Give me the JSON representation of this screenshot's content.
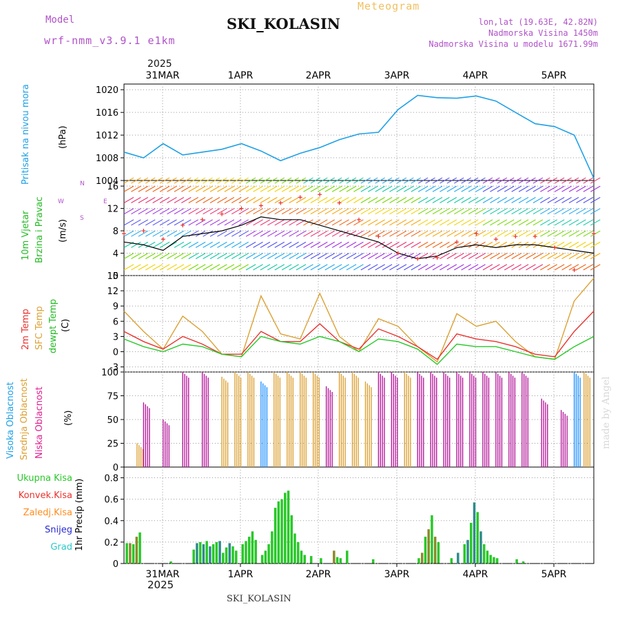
{
  "header": {
    "model_label": "Model",
    "model_value": "wrf-nmm_v3.9.1 e1km",
    "title": "SKI_KOLASIN",
    "subtitle": "Meteogram",
    "lonlat": "lon,lat (19.63E, 42.82N)",
    "elevation": "Nadmorska Visina 1450m",
    "model_elevation": "Nadmorska Visina u modelu 1671.99m",
    "footer": "SKI_KOLASIN",
    "credit": "made by Angel"
  },
  "time_axis": {
    "year": "2025",
    "days": [
      "31MAR",
      "1APR",
      "2APR",
      "3APR",
      "4APR",
      "5APR"
    ]
  },
  "colors": {
    "pressure": "#1ea0e6",
    "wind_speed": "#000000",
    "wind_gust": "#e8322d",
    "temp2m": "#e8322d",
    "sfc_temp": "#dba032",
    "dewpoint": "#28c828",
    "high_cloud": "#1e90ff",
    "mid_cloud": "#dba032",
    "low_cloud": "#b4199b",
    "total_precip": "#28c828",
    "conv_precip": "#e8322d",
    "frz_precip": "#ff8c1e",
    "snow": "#2828d2",
    "hail": "#28c8c8"
  },
  "panels": {
    "pressure": {
      "ylabel_name": "Pritisak na nivou mora",
      "unit": "(hPa)"
    },
    "wind": {
      "ylabel_name_1": "10m Vjetar",
      "ylabel_name_2": "Brzina i Pravac",
      "unit": "(m/s)",
      "compass_n": "N",
      "compass_s": "S",
      "compass_w": "W",
      "compass_e": "E"
    },
    "temp": {
      "label_2m": "2m Temp",
      "label_sfc": "SFC Temp",
      "label_dew": "dewpt Temp",
      "unit": "(C)"
    },
    "cloud": {
      "label_high": "Visoka Oblacnost",
      "label_mid": "Srednja Oblacnost",
      "label_low": "Niska Oblacnost",
      "unit": "(%)"
    },
    "precip": {
      "legend": [
        "Ukupna Kisa",
        "Konvek.Kisa",
        "Zaledj.Kisa",
        "Snijeg",
        "Grad"
      ],
      "ylabel": "1hr Precip (mm)"
    }
  },
  "chart_data": [
    {
      "type": "line",
      "title": "Pritisak na nivou mora",
      "ylabel": "(hPa)",
      "ylim": [
        1004,
        1021
      ],
      "yticks": [
        1004,
        1008,
        1012,
        1016,
        1020
      ],
      "x_hours": [
        0,
        6,
        12,
        18,
        24,
        30,
        36,
        42,
        48,
        54,
        60,
        66,
        72,
        78,
        84,
        90,
        96,
        102,
        108,
        114,
        120,
        126,
        132,
        138,
        144
      ],
      "series": [
        {
          "values": [
            1009,
            1008,
            1010.5,
            1008.5,
            1009,
            1009.5,
            1010.5,
            1009.2,
            1007.5,
            1008.8,
            1009.8,
            1011.2,
            1012.2,
            1012.5,
            1016.5,
            1019,
            1018.6,
            1018.5,
            1018.9,
            1018,
            1016,
            1014,
            1013.5,
            1012,
            1004.4
          ]
        }
      ],
      "grid": true
    },
    {
      "type": "line",
      "title": "10m Vjetar Brzina i Pravac",
      "ylabel": "(m/s)",
      "ylim": [
        0,
        17
      ],
      "yticks": [
        0,
        4,
        8,
        12,
        16
      ],
      "x_hours": [
        0,
        6,
        12,
        18,
        24,
        30,
        36,
        42,
        48,
        54,
        60,
        66,
        72,
        78,
        84,
        90,
        96,
        102,
        108,
        114,
        120,
        126,
        132,
        138,
        144
      ],
      "series": [
        {
          "values": [
            6,
            5.5,
            4.5,
            7,
            7.5,
            8,
            9,
            10.5,
            10,
            10,
            9,
            8,
            7,
            6,
            4,
            3,
            3.5,
            5,
            5.5,
            5,
            5.5,
            5.5,
            5,
            4.5,
            4
          ]
        },
        {
          "values": [
            7.5,
            8,
            6.5,
            9,
            10,
            11,
            12,
            12.5,
            13,
            14,
            14.5,
            13,
            10,
            7,
            4,
            3,
            3.2,
            6,
            7.5,
            6.5,
            7,
            7,
            5,
            1,
            7.5
          ]
        }
      ],
      "grid": true
    },
    {
      "type": "line",
      "title": "2m Temp / SFC Temp / dewpt Temp",
      "ylabel": "(C)",
      "ylim": [
        -4,
        15
      ],
      "yticks": [
        -3,
        0,
        3,
        6,
        9,
        12,
        15
      ],
      "x_hours": [
        0,
        6,
        12,
        18,
        24,
        30,
        36,
        42,
        48,
        54,
        60,
        66,
        72,
        78,
        84,
        90,
        96,
        102,
        108,
        114,
        120,
        126,
        132,
        138,
        144
      ],
      "series": [
        {
          "values": [
            4,
            2,
            0.5,
            3,
            1.5,
            -0.5,
            -0.5,
            4,
            2,
            2,
            5.5,
            2,
            0.5,
            4.5,
            3,
            1,
            -1.5,
            3.5,
            2.5,
            2,
            1,
            -0.5,
            -1,
            4,
            8
          ]
        },
        {
          "values": [
            8,
            4,
            0.5,
            7,
            4,
            -0.5,
            -1,
            11,
            3.5,
            2.5,
            11.5,
            3,
            0,
            6.5,
            5,
            1,
            -2,
            7.5,
            5,
            6,
            2,
            -1,
            -1.5,
            10,
            14.5
          ]
        },
        {
          "values": [
            2.5,
            1,
            0,
            1.5,
            1,
            -0.5,
            -1,
            3,
            2,
            1.5,
            3,
            2,
            0,
            2.5,
            2,
            0.5,
            -2.5,
            1.5,
            1,
            1,
            0,
            -1,
            -1.5,
            1,
            3
          ]
        }
      ],
      "grid": true
    },
    {
      "type": "bar",
      "title": "Visoka / Srednja / Niska Oblacnost",
      "ylabel": "(%)",
      "ylim": [
        0,
        100
      ],
      "yticks": [
        0,
        25,
        50,
        75,
        100
      ],
      "grid": true
    },
    {
      "type": "bar",
      "title": "1hr Precip",
      "ylabel": "(mm)",
      "ylim": [
        0,
        0.9
      ],
      "yticks": [
        0,
        0.2,
        0.4,
        0.6,
        0.8
      ],
      "grid": true
    }
  ]
}
